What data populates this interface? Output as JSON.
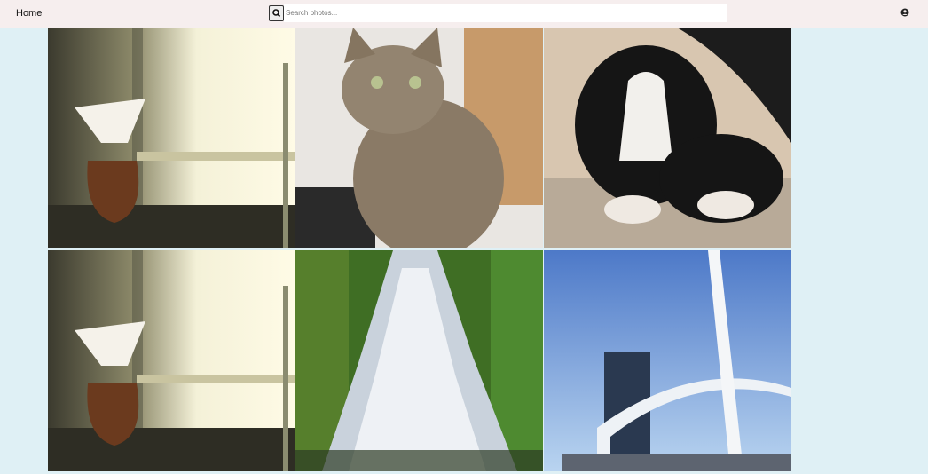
{
  "nav": {
    "home": "Home",
    "search_placeholder": "Search photos..."
  }
}
